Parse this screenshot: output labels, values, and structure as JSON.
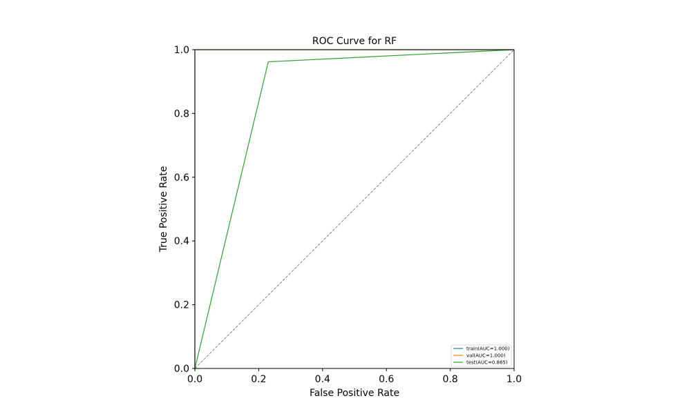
{
  "chart_data": {
    "type": "line",
    "title": "ROC Curve for RF",
    "xlabel": "False Positive Rate",
    "ylabel": "True Positive Rate",
    "xlim": [
      0,
      1
    ],
    "ylim": [
      0,
      1
    ],
    "xticks": [
      "0.0",
      "0.2",
      "0.4",
      "0.6",
      "0.8",
      "1.0"
    ],
    "yticks": [
      "0.0",
      "0.2",
      "0.4",
      "0.6",
      "0.8",
      "1.0"
    ],
    "grid": false,
    "legend_position": "lower-right",
    "series": [
      {
        "name": "train(AUC=1.000)",
        "color": "#1f77b4",
        "x": [
          0,
          0,
          1
        ],
        "y": [
          0,
          1,
          1
        ]
      },
      {
        "name": "val(AUC=1.000)",
        "color": "#ff7f0e",
        "x": [
          0,
          0,
          1
        ],
        "y": [
          0,
          1,
          1
        ]
      },
      {
        "name": "test(AUC=0.865)",
        "color": "#2ca02c",
        "x": [
          0,
          0.23,
          1
        ],
        "y": [
          0,
          0.962,
          1
        ]
      }
    ],
    "reference_line": {
      "color": "#808080",
      "style": "dashed",
      "x": [
        0,
        1
      ],
      "y": [
        0,
        1
      ]
    }
  }
}
